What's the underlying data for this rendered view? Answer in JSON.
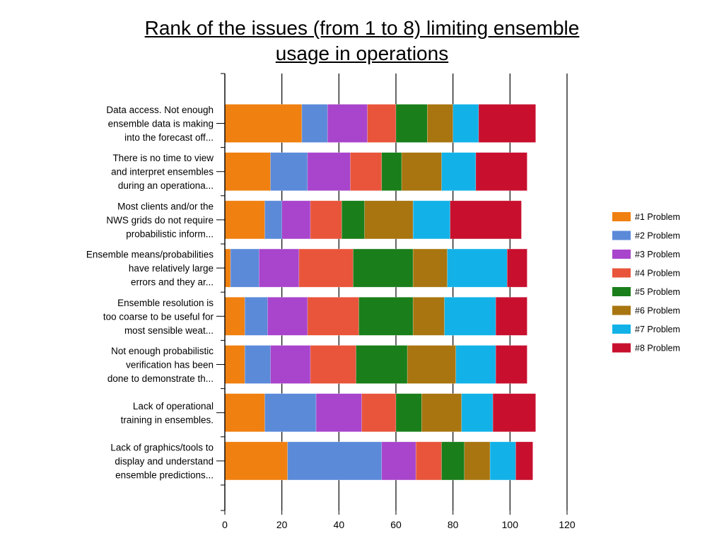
{
  "chart_data": {
    "type": "bar",
    "orientation": "horizontal",
    "stacked": true,
    "title_lines": [
      "Rank of the issues (from 1 to 8) limiting ensemble",
      "usage in operations"
    ],
    "xlabel": "",
    "ylabel": "",
    "xlim": [
      0,
      120
    ],
    "xticks": [
      0,
      20,
      40,
      60,
      80,
      100,
      120
    ],
    "grid": "vertical",
    "legend_position": "right",
    "categories": [
      [
        "Data access. Not enough",
        "ensemble data is making",
        "into the forecast off..."
      ],
      [
        "There is no time to view",
        "and interpret ensembles",
        "during an operationa..."
      ],
      [
        "Most clients and/or the",
        "NWS grids do not require",
        "probabilistic inform..."
      ],
      [
        "Ensemble means/probabilities",
        "have relatively large",
        "errors and they ar..."
      ],
      [
        "Ensemble resolution is",
        "too coarse to be useful for",
        "most sensible weat..."
      ],
      [
        "Not enough probabilistic",
        "verification has been",
        "done to demonstrate th..."
      ],
      [
        "Lack of operational",
        "training in ensembles."
      ],
      [
        "Lack of graphics/tools to",
        "display and understand",
        "ensemble predictions..."
      ]
    ],
    "series": [
      {
        "name": "#1 Problem",
        "color": "#f08010",
        "values": [
          27,
          16,
          14,
          2,
          7,
          7,
          14,
          22
        ]
      },
      {
        "name": "#2 Problem",
        "color": "#5b8ad9",
        "values": [
          9,
          13,
          6,
          10,
          8,
          9,
          18,
          33
        ]
      },
      {
        "name": "#3 Problem",
        "color": "#a845cc",
        "values": [
          14,
          15,
          10,
          14,
          14,
          14,
          16,
          12
        ]
      },
      {
        "name": "#4 Problem",
        "color": "#e8553b",
        "values": [
          10,
          11,
          11,
          19,
          18,
          16,
          12,
          9
        ]
      },
      {
        "name": "#5 Problem",
        "color": "#1a7e1a",
        "values": [
          11,
          7,
          8,
          21,
          19,
          18,
          9,
          8
        ]
      },
      {
        "name": "#6 Problem",
        "color": "#a87510",
        "values": [
          9,
          14,
          17,
          12,
          11,
          17,
          14,
          9
        ]
      },
      {
        "name": "#7 Problem",
        "color": "#12b2e8",
        "values": [
          9,
          12,
          13,
          21,
          18,
          14,
          11,
          9
        ]
      },
      {
        "name": "#8 Problem",
        "color": "#c8102e",
        "values": [
          20,
          18,
          25,
          7,
          11,
          11,
          15,
          6
        ]
      }
    ]
  }
}
